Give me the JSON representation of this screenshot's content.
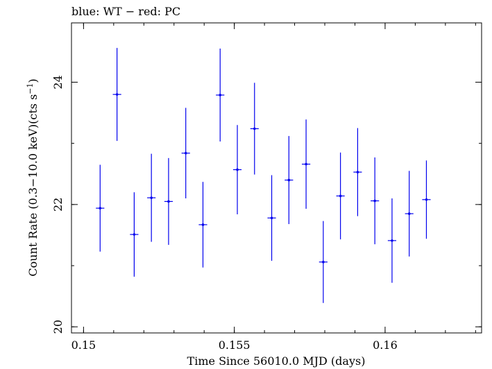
{
  "chart_data": {
    "type": "scatter",
    "title": "blue: WT − red: PC",
    "xlabel": "Time Since 56010.0 MJD (days)",
    "ylabel_main": "Count Rate (0.3−10.0 keV)(cts s",
    "ylabel_sup": "−1",
    "ylabel_end": ")",
    "xlim": [
      0.1496,
      0.1632
    ],
    "ylim": [
      19.9,
      24.97
    ],
    "x_ticks": [
      {
        "value": 0.15,
        "label": "0.15"
      },
      {
        "value": 0.155,
        "label": "0.155"
      },
      {
        "value": 0.16,
        "label": "0.16"
      }
    ],
    "x_minor_step": 0.001,
    "y_ticks": [
      {
        "value": 20,
        "label": "20"
      },
      {
        "value": 22,
        "label": "22"
      },
      {
        "value": 24,
        "label": "24"
      }
    ],
    "y_minor_step": 1,
    "series": [
      {
        "color": "#0000ee",
        "x": [
          0.15055,
          0.15111,
          0.15168,
          0.15225,
          0.15282,
          0.15339,
          0.15396,
          0.15453,
          0.1551,
          0.15567,
          0.15624,
          0.15681,
          0.15738,
          0.15795,
          0.15852,
          0.15909,
          0.15966,
          0.16023,
          0.1608,
          0.16137
        ],
        "xerr": [
          0.00014,
          0.00014,
          0.00014,
          0.00014,
          0.00014,
          0.00014,
          0.00014,
          0.00014,
          0.00014,
          0.00014,
          0.00014,
          0.00014,
          0.00014,
          0.00014,
          0.00014,
          0.00014,
          0.00014,
          0.00014,
          0.00014,
          0.00014
        ],
        "y": [
          21.94,
          23.8,
          21.51,
          22.11,
          22.05,
          22.84,
          21.67,
          23.79,
          22.57,
          23.24,
          21.78,
          22.4,
          22.66,
          21.06,
          22.14,
          22.53,
          22.06,
          21.41,
          21.85,
          22.08
        ],
        "yerr": [
          0.71,
          0.76,
          0.69,
          0.72,
          0.71,
          0.74,
          0.7,
          0.76,
          0.73,
          0.75,
          0.7,
          0.72,
          0.73,
          0.67,
          0.71,
          0.72,
          0.71,
          0.69,
          0.7,
          0.64
        ]
      }
    ]
  }
}
